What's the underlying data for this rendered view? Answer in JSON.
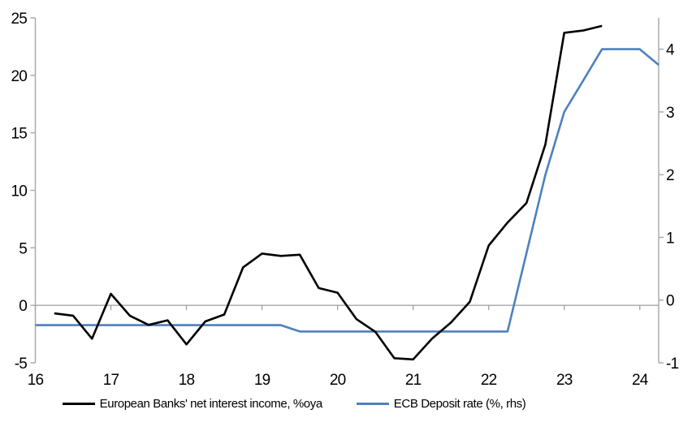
{
  "chart_data": {
    "type": "line",
    "title": "",
    "xlabel": "",
    "ylabel_left": "",
    "ylabel_right": "",
    "grid": "zero-line-only",
    "legend_position": "bottom",
    "x_range": [
      16,
      24.25
    ],
    "x_ticks": [
      "16",
      "17",
      "18",
      "19",
      "20",
      "21",
      "22",
      "23",
      "24"
    ],
    "left_axis": {
      "range": [
        -5,
        25
      ],
      "ticks": [
        "-5",
        "0",
        "5",
        "10",
        "15",
        "20",
        "25"
      ]
    },
    "right_axis": {
      "range": [
        -1,
        4.5
      ],
      "ticks": [
        "-1",
        "0",
        "1",
        "2",
        "3",
        "4"
      ]
    },
    "series": [
      {
        "name": "European Banks' net interest income, %oya",
        "axis": "left",
        "color": "#000000",
        "x": [
          16.25,
          16.5,
          16.75,
          17.0,
          17.25,
          17.5,
          17.75,
          18.0,
          18.25,
          18.5,
          18.75,
          19.0,
          19.25,
          19.5,
          19.75,
          20.0,
          20.25,
          20.5,
          20.75,
          21.0,
          21.25,
          21.5,
          21.75,
          22.0,
          22.25,
          22.5,
          22.75,
          23.0,
          23.25,
          23.5
        ],
        "y": [
          -0.7,
          -0.9,
          -2.9,
          1.0,
          -0.9,
          -1.7,
          -1.3,
          -3.4,
          -1.4,
          -0.8,
          3.3,
          4.5,
          4.3,
          4.4,
          1.5,
          1.1,
          -1.2,
          -2.3,
          -4.6,
          -4.7,
          -2.9,
          -1.5,
          0.3,
          5.2,
          7.2,
          8.9,
          14.0,
          23.7,
          23.9,
          24.3
        ]
      },
      {
        "name": "ECB Deposit rate (%, rhs)",
        "axis": "right",
        "color": "#4E81BD",
        "x": [
          16.0,
          16.25,
          16.5,
          16.75,
          17.0,
          17.25,
          17.5,
          17.75,
          18.0,
          18.25,
          18.5,
          18.75,
          19.0,
          19.25,
          19.5,
          19.75,
          20.0,
          20.25,
          20.5,
          20.75,
          21.0,
          21.25,
          21.5,
          21.75,
          22.0,
          22.25,
          22.5,
          22.75,
          23.0,
          23.25,
          23.5,
          23.75,
          24.0,
          24.25
        ],
        "y": [
          -0.4,
          -0.4,
          -0.4,
          -0.4,
          -0.4,
          -0.4,
          -0.4,
          -0.4,
          -0.4,
          -0.4,
          -0.4,
          -0.4,
          -0.4,
          -0.4,
          -0.5,
          -0.5,
          -0.5,
          -0.5,
          -0.5,
          -0.5,
          -0.5,
          -0.5,
          -0.5,
          -0.5,
          -0.5,
          -0.5,
          0.75,
          2.0,
          3.0,
          3.5,
          4.0,
          4.0,
          4.0,
          3.75
        ]
      }
    ]
  },
  "colors": {
    "axis": "#A6A6A6",
    "zero_line": "#A6A6A6",
    "text": "#000000",
    "background": "#FFFFFF"
  }
}
